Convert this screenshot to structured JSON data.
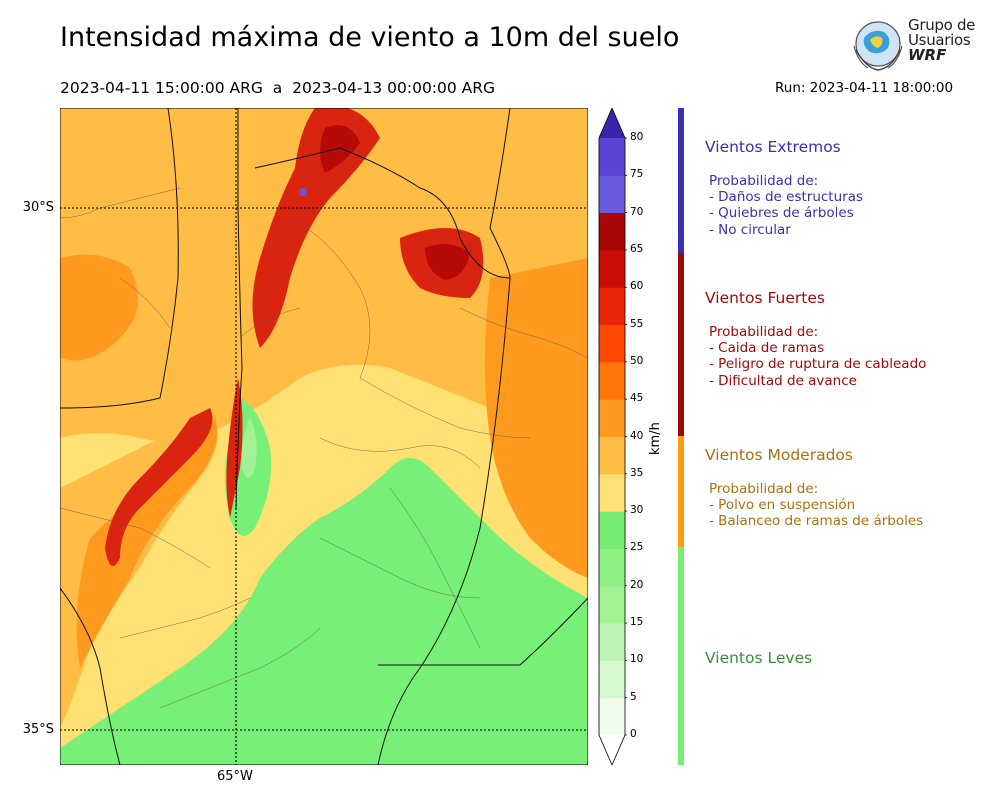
{
  "title": "Intensidad máxima de viento a 10m del suelo",
  "period": "2023-04-11 15:00:00 ARG  a  2023-04-13 00:00:00 ARG",
  "run": "Run: 2023-04-11 18:00:00",
  "logo": {
    "line1": "Grupo de",
    "line2": "Usuarios",
    "line3": "WRF"
  },
  "map": {
    "lat_labels": [
      "30°S",
      "35°S"
    ],
    "lon_labels": [
      "65°W"
    ],
    "colors": {
      "light_green": "#78f078",
      "yellow": "#ffe073",
      "light_orange": "#ffbd45",
      "orange": "#ff9a1e",
      "red": "#d92510",
      "dark_red": "#b50a07",
      "purple": "#6b4fd8"
    }
  },
  "colorbar": {
    "unit": "km/h",
    "ticks": [
      "0",
      "5",
      "10",
      "15",
      "20",
      "25",
      "30",
      "35",
      "40",
      "45",
      "50",
      "55",
      "60",
      "65",
      "70",
      "75",
      "80"
    ],
    "colors": [
      "#effcec",
      "#d6f8cf",
      "#bcf4b2",
      "#a2f294",
      "#8ef083",
      "#76ee74",
      "#ffe073",
      "#ffbd45",
      "#ff9a1e",
      "#ff7609",
      "#ff4803",
      "#e82507",
      "#cb0d06",
      "#a90606",
      "#6b5cde",
      "#5944d6",
      "#4a33c2",
      "#3b25ad"
    ]
  },
  "legend": [
    {
      "title": "Vientos Extremos",
      "color": "#3b2fae",
      "desc": "Probabilidad de:\n- Daños de estructuras\n- Quiebres de árboles\n- No circular"
    },
    {
      "title": "Vientos Fuertes",
      "color": "#a10a0a",
      "desc": "Probabilidad de:\n- Caida de ramas\n- Peligro de ruptura de cableado\n- Dificultad de avance"
    },
    {
      "title": "Vientos Moderados",
      "color": "#a87210",
      "desc": "Probabilidad de:\n- Polvo en suspensión\n- Balanceo de ramas de árboles"
    },
    {
      "title": "Vientos Leves",
      "color": "#3a8f3a",
      "desc": ""
    }
  ],
  "level_bar_colors": [
    "#3a2fb5",
    "#a10606",
    "#ff9b12",
    "#76ee74"
  ]
}
